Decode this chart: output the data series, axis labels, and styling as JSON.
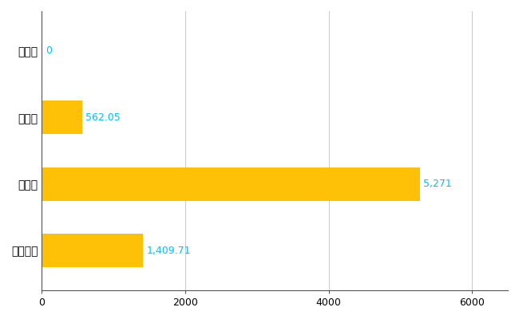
{
  "categories": [
    "天川村",
    "県平均",
    "県最大",
    "全国平均"
  ],
  "values": [
    0,
    562.05,
    5271,
    1409.71
  ],
  "bar_color": "#FFC107",
  "label_color": "#00BFFF",
  "labels": [
    "0",
    "562.05",
    "5,271",
    "1,409.71"
  ],
  "xlim": [
    0,
    6500
  ],
  "xticks": [
    0,
    2000,
    4000,
    6000
  ],
  "xtick_labels": [
    "0",
    "2000",
    "4000",
    "6000"
  ],
  "background_color": "#ffffff",
  "grid_color": "#cccccc",
  "bar_height": 0.5,
  "label_fontsize": 9,
  "tick_fontsize": 9,
  "ytick_fontsize": 10
}
